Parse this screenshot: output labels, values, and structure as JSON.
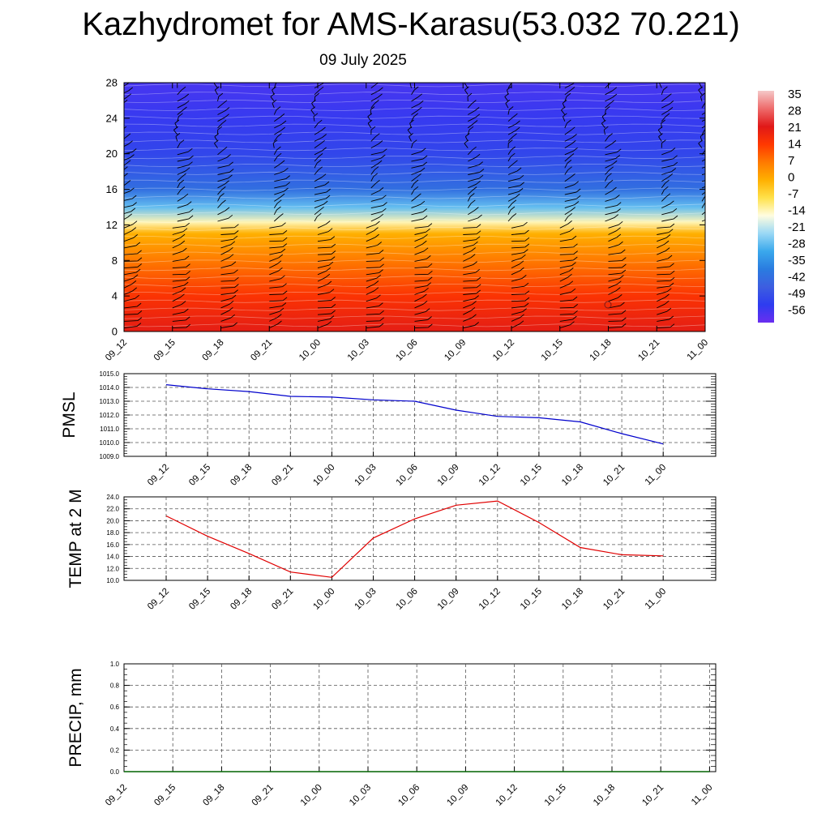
{
  "title": "Kazhydromet for AMS-Karasu(53.032 70.221)",
  "subtitle": "09 July 2025",
  "chart_data": [
    {
      "type": "heatmap",
      "name": "vertical temperature cross-section with wind barbs",
      "x_ticks": [
        "09_12",
        "09_15",
        "09_18",
        "09_21",
        "10_00",
        "10_03",
        "10_06",
        "10_09",
        "10_12",
        "10_15",
        "10_18",
        "10_21",
        "11_00"
      ],
      "y_ticks": [
        0,
        4,
        8,
        12,
        16,
        20,
        24,
        28
      ],
      "ylim": [
        0,
        28
      ],
      "colorbar_labels": [
        "35",
        "28",
        "21",
        "14",
        "7",
        "0",
        "-7",
        "-14",
        "-21",
        "-28",
        "-35",
        "-42",
        "-49",
        "-56"
      ],
      "colorbar_colors": [
        "#f5c8c8",
        "#ee6b6b",
        "#e01818",
        "#ff3800",
        "#ff7a00",
        "#ffb000",
        "#ffe14a",
        "#fffde0",
        "#9ad8f5",
        "#3aa8ec",
        "#2a7ce0",
        "#3d5ee0",
        "#2e3cf0",
        "#6a2ef0"
      ],
      "temperature_profile": [
        {
          "level": 0,
          "value": 20
        },
        {
          "level": 4,
          "value": 15
        },
        {
          "level": 8,
          "value": 7
        },
        {
          "level": 11,
          "value": 0
        },
        {
          "level": 12.3,
          "value": -12
        },
        {
          "level": 14,
          "value": -25
        },
        {
          "level": 16,
          "value": -38
        },
        {
          "level": 20,
          "value": -47
        },
        {
          "level": 24,
          "value": -50
        },
        {
          "level": 28,
          "value": -52
        }
      ]
    },
    {
      "type": "line",
      "ylabel": "PMSL",
      "ylim": [
        1009.0,
        1015.0
      ],
      "y_ticks": [
        "1009.0",
        "1010.0",
        "1011.0",
        "1012.0",
        "1013.0",
        "1014.0",
        "1015.0"
      ],
      "x_ticks": [
        "09_12",
        "09_15",
        "09_18",
        "09_21",
        "10_00",
        "10_03",
        "10_06",
        "10_09",
        "10_12",
        "10_15",
        "10_18",
        "10_21",
        "11_00"
      ],
      "series": [
        {
          "color": "#0000cc",
          "values": [
            1014.2,
            1013.9,
            1013.7,
            1013.35,
            1013.3,
            1013.1,
            1013.0,
            1012.35,
            1011.9,
            1011.8,
            1011.5,
            1010.65,
            1009.9
          ]
        }
      ]
    },
    {
      "type": "line",
      "ylabel": "TEMP at 2 M",
      "ylim": [
        10.0,
        24.0
      ],
      "y_ticks": [
        "10.0",
        "12.0",
        "14.0",
        "16.0",
        "18.0",
        "20.0",
        "22.0",
        "24.0"
      ],
      "x_ticks": [
        "09_12",
        "09_15",
        "09_18",
        "09_21",
        "10_00",
        "10_03",
        "10_06",
        "10_09",
        "10_12",
        "10_15",
        "10_18",
        "10_21",
        "11_00"
      ],
      "series": [
        {
          "color": "#e00000",
          "values": [
            20.8,
            17.4,
            14.5,
            11.4,
            10.5,
            17.1,
            20.3,
            22.6,
            23.3,
            19.7,
            15.5,
            14.3,
            14.1
          ]
        }
      ]
    },
    {
      "type": "line",
      "ylabel": "PRECIP, mm",
      "ylim": [
        0.0,
        1.0
      ],
      "y_ticks": [
        "0.0",
        "0.2",
        "0.4",
        "0.6",
        "0.8",
        "1.0"
      ],
      "x_ticks": [
        "09_12",
        "09_15",
        "09_18",
        "09_21",
        "10_00",
        "10_03",
        "10_06",
        "10_09",
        "10_12",
        "10_15",
        "10_18",
        "10_21",
        "11_00"
      ],
      "series": [
        {
          "color": "#006400",
          "values": [
            0,
            0,
            0,
            0,
            0,
            0,
            0,
            0,
            0,
            0,
            0,
            0,
            0
          ]
        }
      ]
    }
  ]
}
